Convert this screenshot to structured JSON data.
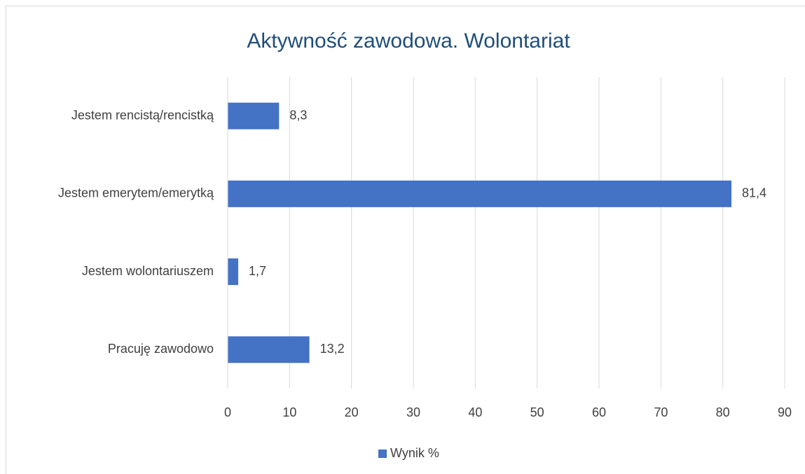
{
  "chart_data": {
    "type": "bar",
    "orientation": "horizontal",
    "title": "Aktywność zawodowa. Wolontariat",
    "categories": [
      "Pracuję zawodowo",
      "Jestem wolontariuszem",
      "Jestem emerytem/emerytką",
      "Jestem rencistą/rencistką"
    ],
    "series": [
      {
        "name": "Wynik %",
        "color": "#4472c4",
        "values": [
          13.2,
          1.7,
          81.4,
          8.3
        ],
        "value_labels": [
          "13,2",
          "1,7",
          "81,4",
          "8,3"
        ]
      }
    ],
    "xlim": [
      0,
      90
    ],
    "xticks": [
      0,
      10,
      20,
      30,
      40,
      50,
      60,
      70,
      80,
      90
    ],
    "grid": true,
    "legend": "bottom"
  }
}
